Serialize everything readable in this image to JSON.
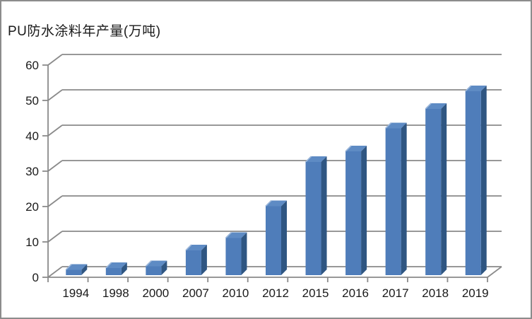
{
  "chart_data": {
    "type": "bar",
    "style": "3d-perspective",
    "title": "PU防水涂料年产量(万吨)",
    "categories": [
      "1994",
      "1998",
      "2000",
      "2007",
      "2010",
      "2012",
      "2015",
      "2016",
      "2017",
      "2018",
      "2019"
    ],
    "values": [
      1.5,
      2,
      2.5,
      7,
      10.5,
      19.5,
      32,
      35,
      41.5,
      47,
      52
    ],
    "series_name": "PU防水涂料年产量",
    "unit": "万吨",
    "xlabel": "",
    "ylabel": "",
    "ylim": [
      0,
      60
    ],
    "yticks": [
      0,
      10,
      20,
      30,
      40,
      50,
      60
    ],
    "grid": true,
    "legend": false
  },
  "colors": {
    "bar_front": "#4F7DBA",
    "bar_side": "#2F5682",
    "bar_top": "#5E8BC4",
    "bar_top_highlight": "#9BB6D9",
    "grid": "#8a8a8a",
    "axis": "#8a8a8a",
    "text": "#1a1a1a",
    "border": "#8c8c8c",
    "background": "#ffffff"
  }
}
